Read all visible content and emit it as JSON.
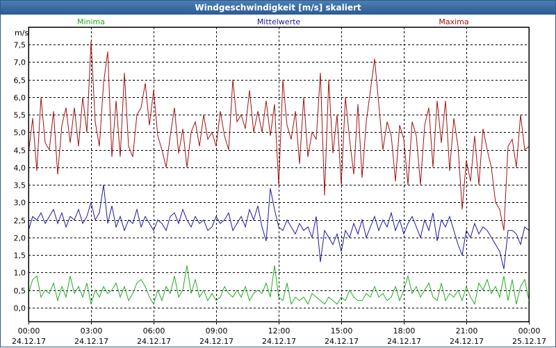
{
  "window": {
    "title": "Windgeschwindigkeit [m/s] skaliert"
  },
  "colors": {
    "minima": "#22aa22",
    "mittel": "#1a1aa0",
    "maxima": "#a01010",
    "grid": "#000000"
  },
  "chart_data": {
    "type": "line",
    "title": "Windgeschwindigkeit [m/s] skaliert",
    "ylabel": "m/s",
    "ylim": [
      -0.4,
      8.0
    ],
    "xlim": [
      0,
      24
    ],
    "yticks": [
      0.0,
      0.5,
      1.0,
      1.5,
      2.0,
      2.5,
      3.0,
      3.5,
      4.0,
      4.5,
      5.0,
      5.5,
      6.0,
      6.5,
      7.0,
      7.5
    ],
    "ytick_labels": [
      "0,0",
      "0,5",
      "1,0",
      "1,5",
      "2,0",
      "2,5",
      "3,0",
      "3,5",
      "4,0",
      "4,5",
      "5,0",
      "5,5",
      "6,0",
      "6,5",
      "7,0",
      "7,5"
    ],
    "xticks": [
      0,
      3,
      6,
      9,
      12,
      15,
      18,
      21,
      24
    ],
    "xtick_labels": [
      [
        "00:00",
        "24.12.17"
      ],
      [
        "03:00",
        "24.12.17"
      ],
      [
        "06:00",
        "24.12.17"
      ],
      [
        "09:00",
        "24.12.17"
      ],
      [
        "12:00",
        "24.12.17"
      ],
      [
        "15:00",
        "24.12.17"
      ],
      [
        "18:00",
        "24.12.17"
      ],
      [
        "21:00",
        "24.12.17"
      ],
      [
        "00:00",
        "25.12.17"
      ]
    ],
    "legend": [
      "Minima",
      "Mittelwerte",
      "Maxima"
    ],
    "series": [
      {
        "name": "Maxima",
        "x": [
          0,
          0.2,
          0.4,
          0.6,
          0.8,
          1.0,
          1.2,
          1.4,
          1.6,
          1.8,
          2.0,
          2.2,
          2.4,
          2.6,
          2.8,
          3.0,
          3.2,
          3.4,
          3.6,
          3.8,
          4.0,
          4.2,
          4.4,
          4.6,
          4.8,
          5.0,
          5.2,
          5.4,
          5.6,
          5.8,
          6.0,
          6.2,
          6.4,
          6.6,
          6.8,
          7.0,
          7.2,
          7.4,
          7.6,
          7.8,
          8.0,
          8.2,
          8.4,
          8.6,
          8.8,
          9.0,
          9.2,
          9.4,
          9.6,
          9.8,
          10.0,
          10.2,
          10.4,
          10.6,
          10.8,
          11.0,
          11.2,
          11.4,
          11.6,
          11.8,
          12.0,
          12.2,
          12.4,
          12.6,
          12.8,
          13.0,
          13.2,
          13.4,
          13.6,
          13.8,
          14.0,
          14.2,
          14.4,
          14.6,
          14.8,
          15.0,
          15.2,
          15.4,
          15.6,
          15.8,
          16.0,
          16.2,
          16.4,
          16.6,
          16.8,
          17.0,
          17.2,
          17.4,
          17.6,
          17.8,
          18.0,
          18.2,
          18.4,
          18.6,
          18.8,
          19.0,
          19.2,
          19.4,
          19.6,
          19.8,
          20.0,
          20.2,
          20.4,
          20.6,
          20.8,
          21.0,
          21.2,
          21.4,
          21.6,
          21.8,
          22.0,
          22.2,
          22.4,
          22.6,
          22.8,
          23.0,
          23.2,
          23.4,
          23.6,
          23.8,
          24.0
        ],
        "values": [
          4.4,
          5.4,
          3.9,
          6.0,
          4.7,
          4.5,
          5.6,
          3.8,
          5.2,
          5.7,
          4.7,
          5.7,
          4.6,
          6.0,
          5.0,
          7.6,
          5.3,
          4.6,
          6.4,
          7.3,
          4.3,
          5.9,
          4.3,
          6.7,
          4.6,
          4.3,
          5.5,
          5.7,
          6.4,
          5.2,
          6.2,
          4.9,
          4.5,
          4.0,
          4.9,
          5.7,
          4.4,
          5.1,
          4.0,
          5.0,
          5.3,
          4.6,
          5.5,
          4.8,
          5.0,
          4.6,
          5.6,
          4.9,
          4.5,
          6.5,
          5.3,
          5.5,
          5.1,
          6.2,
          5.0,
          5.6,
          5.0,
          5.9,
          4.9,
          5.8,
          3.5,
          6.5,
          5.2,
          4.8,
          5.6,
          4.1,
          6.0,
          4.3,
          5.0,
          4.8,
          6.7,
          3.2,
          6.5,
          4.4,
          5.5,
          3.5,
          6.0,
          4.8,
          3.8,
          5.8,
          3.7,
          5.3,
          6.2,
          7.1,
          5.8,
          4.5,
          5.3,
          4.9,
          3.6,
          5.2,
          4.8,
          3.5,
          5.3,
          4.9,
          3.5,
          5.2,
          5.7,
          4.0,
          5.9,
          4.7,
          5.9,
          3.9,
          5.4,
          4.6,
          2.8,
          4.2,
          3.6,
          4.9,
          3.5,
          5.1,
          4.5,
          4.0,
          3.0,
          2.8,
          2.2,
          4.6,
          4.8,
          4.0,
          5.5,
          4.5,
          4.6
        ],
        "color": "#a01010"
      },
      {
        "name": "Mittelwerte",
        "x": [
          0,
          0.2,
          0.4,
          0.6,
          0.8,
          1.0,
          1.2,
          1.4,
          1.6,
          1.8,
          2.0,
          2.2,
          2.4,
          2.6,
          2.8,
          3.0,
          3.2,
          3.4,
          3.6,
          3.8,
          4.0,
          4.2,
          4.4,
          4.6,
          4.8,
          5.0,
          5.2,
          5.4,
          5.6,
          5.8,
          6.0,
          6.2,
          6.4,
          6.6,
          6.8,
          7.0,
          7.2,
          7.4,
          7.6,
          7.8,
          8.0,
          8.2,
          8.4,
          8.6,
          8.8,
          9.0,
          9.2,
          9.4,
          9.6,
          9.8,
          10.0,
          10.2,
          10.4,
          10.6,
          10.8,
          11.0,
          11.2,
          11.4,
          11.6,
          11.8,
          12.0,
          12.2,
          12.4,
          12.6,
          12.8,
          13.0,
          13.2,
          13.4,
          13.6,
          13.8,
          14.0,
          14.2,
          14.4,
          14.6,
          14.8,
          15.0,
          15.2,
          15.4,
          15.6,
          15.8,
          16.0,
          16.2,
          16.4,
          16.6,
          16.8,
          17.0,
          17.2,
          17.4,
          17.6,
          17.8,
          18.0,
          18.2,
          18.4,
          18.6,
          18.8,
          19.0,
          19.2,
          19.4,
          19.6,
          19.8,
          20.0,
          20.2,
          20.4,
          20.6,
          20.8,
          21.0,
          21.2,
          21.4,
          21.6,
          21.8,
          22.0,
          22.2,
          22.4,
          22.6,
          22.8,
          23.0,
          23.2,
          23.4,
          23.6,
          23.8,
          24.0
        ],
        "values": [
          2.2,
          2.6,
          2.5,
          2.7,
          2.4,
          2.6,
          2.8,
          2.4,
          2.7,
          2.3,
          2.6,
          2.5,
          2.8,
          2.4,
          2.6,
          3.0,
          2.5,
          2.7,
          3.5,
          2.4,
          2.9,
          2.3,
          2.6,
          2.2,
          2.5,
          2.4,
          2.8,
          2.3,
          2.6,
          2.4,
          2.2,
          2.5,
          2.4,
          2.2,
          2.6,
          2.7,
          2.4,
          2.8,
          2.5,
          2.3,
          2.6,
          2.4,
          2.5,
          2.2,
          2.3,
          2.6,
          2.4,
          2.5,
          2.7,
          2.2,
          2.4,
          2.6,
          2.3,
          2.8,
          2.5,
          2.9,
          2.3,
          1.9,
          3.4,
          2.8,
          2.3,
          2.2,
          2.5,
          2.3,
          2.1,
          2.4,
          2.2,
          2.3,
          2.0,
          2.6,
          1.3,
          2.2,
          2.0,
          1.8,
          2.1,
          1.6,
          2.2,
          2.0,
          2.4,
          2.1,
          2.5,
          2.0,
          2.3,
          2.6,
          2.2,
          2.5,
          2.3,
          2.7,
          2.2,
          2.5,
          2.1,
          2.4,
          2.6,
          2.3,
          2.0,
          2.5,
          2.2,
          2.7,
          1.9,
          2.5,
          2.3,
          2.6,
          2.2,
          1.8,
          1.5,
          2.2,
          2.0,
          2.4,
          2.1,
          2.3,
          2.2,
          2.0,
          1.8,
          1.6,
          1.1,
          2.2,
          2.2,
          2.1,
          1.8,
          2.3,
          2.2
        ],
        "color": "#1a1aa0"
      },
      {
        "name": "Minima",
        "x": [
          0,
          0.2,
          0.4,
          0.6,
          0.8,
          1.0,
          1.2,
          1.4,
          1.6,
          1.8,
          2.0,
          2.2,
          2.4,
          2.6,
          2.8,
          3.0,
          3.2,
          3.4,
          3.6,
          3.8,
          4.0,
          4.2,
          4.4,
          4.6,
          4.8,
          5.0,
          5.2,
          5.4,
          5.6,
          5.8,
          6.0,
          6.2,
          6.4,
          6.6,
          6.8,
          7.0,
          7.2,
          7.4,
          7.6,
          7.8,
          8.0,
          8.2,
          8.4,
          8.6,
          8.8,
          9.0,
          9.2,
          9.4,
          9.6,
          9.8,
          10.0,
          10.2,
          10.4,
          10.6,
          10.8,
          11.0,
          11.2,
          11.4,
          11.6,
          11.8,
          12.0,
          12.2,
          12.4,
          12.6,
          12.8,
          13.0,
          13.2,
          13.4,
          13.6,
          13.8,
          14.0,
          14.2,
          14.4,
          14.6,
          14.8,
          15.0,
          15.2,
          15.4,
          15.6,
          15.8,
          16.0,
          16.2,
          16.4,
          16.6,
          16.8,
          17.0,
          17.2,
          17.4,
          17.6,
          17.8,
          18.0,
          18.2,
          18.4,
          18.6,
          18.8,
          19.0,
          19.2,
          19.4,
          19.6,
          19.8,
          20.0,
          20.2,
          20.4,
          20.6,
          20.8,
          21.0,
          21.2,
          21.4,
          21.6,
          21.8,
          22.0,
          22.2,
          22.4,
          22.6,
          22.8,
          23.0,
          23.2,
          23.4,
          23.6,
          23.8,
          24.0
        ],
        "values": [
          0.4,
          0.8,
          0.9,
          0.3,
          0.5,
          0.4,
          0.7,
          0.2,
          0.6,
          0.3,
          0.9,
          0.4,
          0.6,
          0.3,
          0.7,
          0.1,
          0.5,
          0.3,
          0.6,
          0.4,
          0.5,
          0.7,
          0.3,
          0.6,
          0.2,
          0.4,
          0.7,
          0.8,
          0.6,
          0.3,
          0.1,
          0.5,
          0.2,
          0.6,
          0.4,
          0.9,
          0.3,
          0.5,
          1.2,
          0.4,
          0.8,
          0.3,
          0.5,
          0.2,
          0.4,
          0.2,
          0.3,
          0.6,
          0.4,
          0.3,
          0.5,
          0.3,
          0.6,
          0.2,
          0.4,
          0.5,
          0.4,
          0.7,
          0.3,
          1.2,
          0.3,
          0.2,
          0.7,
          0.1,
          0.3,
          0.2,
          0.3,
          0.1,
          0.4,
          0.3,
          0.2,
          0.1,
          0.3,
          0.2,
          0.1,
          0.3,
          0.2,
          0.5,
          0.3,
          0.2,
          0.2,
          0.4,
          0.3,
          0.6,
          0.3,
          0.4,
          0.2,
          0.3,
          0.6,
          0.2,
          0.5,
          0.9,
          0.4,
          0.6,
          0.3,
          0.5,
          0.7,
          0.3,
          0.2,
          0.7,
          0.2,
          0.4,
          0.3,
          0.5,
          0.2,
          0.6,
          0.3,
          0.1,
          0.7,
          0.5,
          0.8,
          0.4,
          0.6,
          0.3,
          0.9,
          0.2,
          0.8,
          0.1,
          0.6,
          0.8,
          0.2
        ],
        "color": "#22aa22"
      }
    ]
  }
}
